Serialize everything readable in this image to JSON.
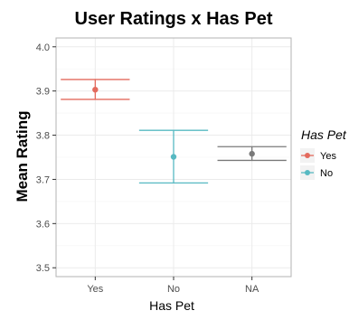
{
  "chart_data": {
    "type": "scatter",
    "title": "User Ratings x Has Pet",
    "xlabel": "Has Pet",
    "ylabel": "Mean Rating",
    "categories": [
      "Yes",
      "No",
      "NA"
    ],
    "ylim": [
      3.48,
      4.02
    ],
    "yticks": [
      "3.5",
      "3.6",
      "3.7",
      "3.8",
      "3.9",
      "4.0"
    ],
    "grid": true,
    "legend_placement": "right",
    "legend": {
      "title": "Has Pet",
      "entries": [
        {
          "label": "Yes",
          "color": "#e36a5d"
        },
        {
          "label": "No",
          "color": "#57b9c2"
        }
      ]
    },
    "points": [
      {
        "category": "Yes",
        "mean": 3.903,
        "lower": 3.881,
        "upper": 3.926,
        "color": "#e36a5d"
      },
      {
        "category": "No",
        "mean": 3.751,
        "lower": 3.692,
        "upper": 3.811,
        "color": "#57b9c2"
      },
      {
        "category": "NA",
        "mean": 3.758,
        "lower": 3.743,
        "upper": 3.774,
        "color": "#7a7a7a"
      }
    ],
    "colors": {
      "panel_border": "#b3b3b3",
      "grid_major": "#ebebeb",
      "grid_minor": "#f4f4f4",
      "axis_text": "#4d4d4d",
      "title_text": "#000000"
    }
  }
}
